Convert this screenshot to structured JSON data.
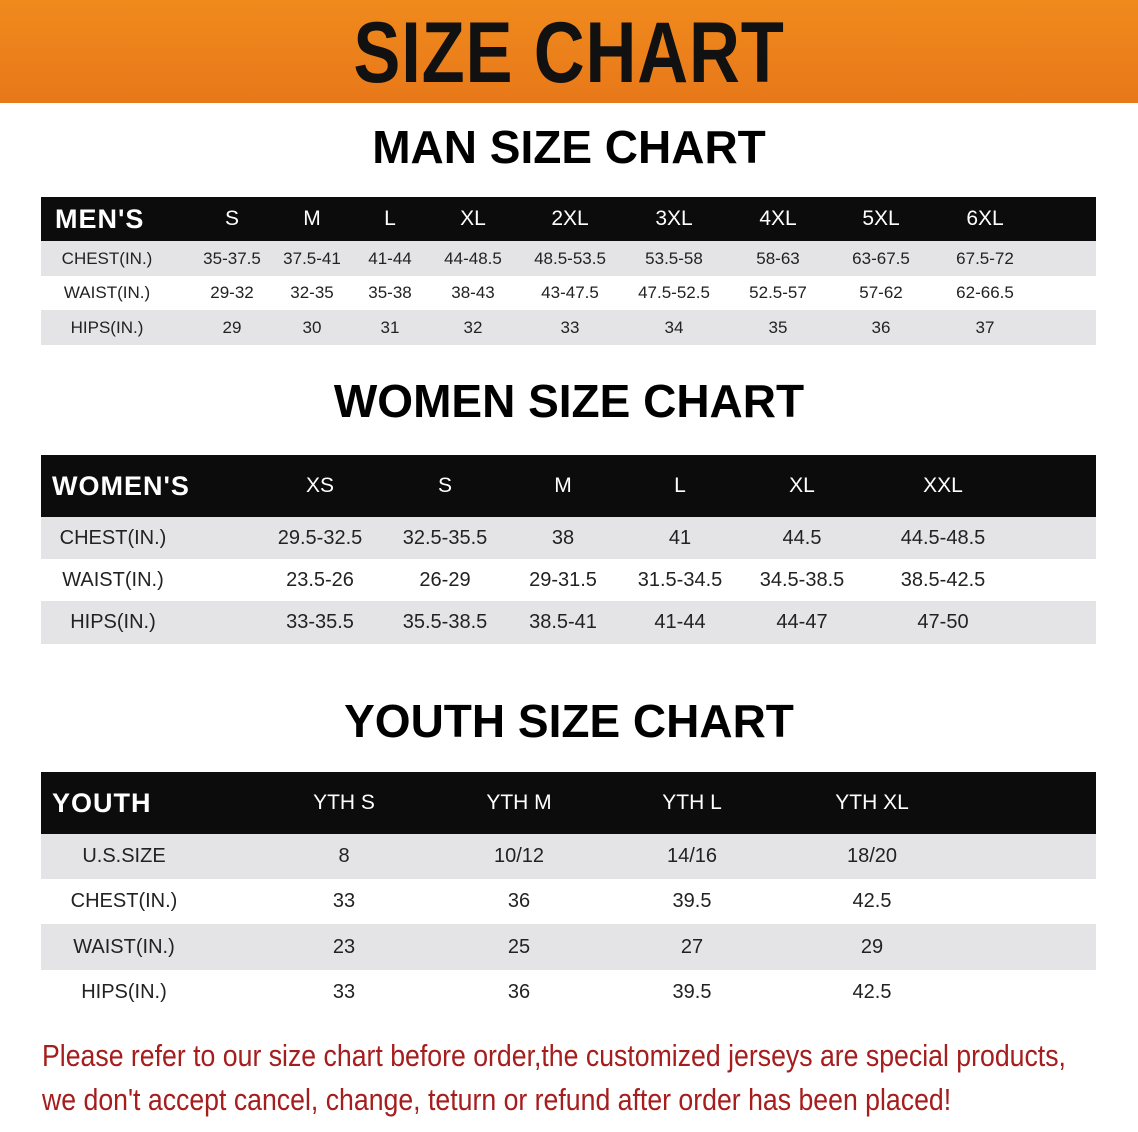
{
  "title": "SIZE CHART",
  "colors": {
    "banner": "#ee8220",
    "header_bg": "#0c0c0c",
    "stripe": "#e4e4e6",
    "note": "#a51d1d"
  },
  "men": {
    "title": "MAN SIZE CHART",
    "header": [
      "MEN'S",
      "S",
      "M",
      "L",
      "XL",
      "2XL",
      "3XL",
      "4XL",
      "5XL",
      "6XL"
    ],
    "rows": [
      [
        "CHEST(IN.)",
        "35-37.5",
        "37.5-41",
        "41-44",
        "44-48.5",
        "48.5-53.5",
        "53.5-58",
        "58-63",
        "63-67.5",
        "67.5-72"
      ],
      [
        "WAIST(IN.)",
        "29-32",
        "32-35",
        "35-38",
        "38-43",
        "43-47.5",
        "47.5-52.5",
        "52.5-57",
        "57-62",
        "62-66.5"
      ],
      [
        "HIPS(IN.)",
        "29",
        "30",
        "31",
        "32",
        "33",
        "34",
        "35",
        "36",
        "37"
      ]
    ]
  },
  "women": {
    "title": "WOMEN SIZE CHART",
    "header": [
      "WOMEN'S",
      "XS",
      "S",
      "M",
      "L",
      "XL",
      "XXL"
    ],
    "rows": [
      [
        "CHEST(IN.)",
        "29.5-32.5",
        "32.5-35.5",
        "38",
        "41",
        "44.5",
        "44.5-48.5"
      ],
      [
        "WAIST(IN.)",
        "23.5-26",
        "26-29",
        "29-31.5",
        "31.5-34.5",
        "34.5-38.5",
        "38.5-42.5"
      ],
      [
        "HIPS(IN.)",
        "33-35.5",
        "35.5-38.5",
        "38.5-41",
        "41-44",
        "44-47",
        "47-50"
      ]
    ]
  },
  "youth": {
    "title": "YOUTH SIZE CHART",
    "header": [
      "YOUTH",
      "YTH S",
      "YTH M",
      "YTH L",
      "YTH XL"
    ],
    "rows": [
      [
        "U.S.SIZE",
        "8",
        "10/12",
        "14/16",
        "18/20"
      ],
      [
        "CHEST(IN.)",
        "33",
        "36",
        "39.5",
        "42.5"
      ],
      [
        "WAIST(IN.)",
        "23",
        "25",
        "27",
        "29"
      ],
      [
        "HIPS(IN.)",
        "33",
        "36",
        "39.5",
        "42.5"
      ]
    ]
  },
  "note": {
    "line1": "Please refer to our size chart before order,the customized jerseys are special products,",
    "line2": "we don't accept cancel, change, teturn or refund after order has been placed!"
  }
}
